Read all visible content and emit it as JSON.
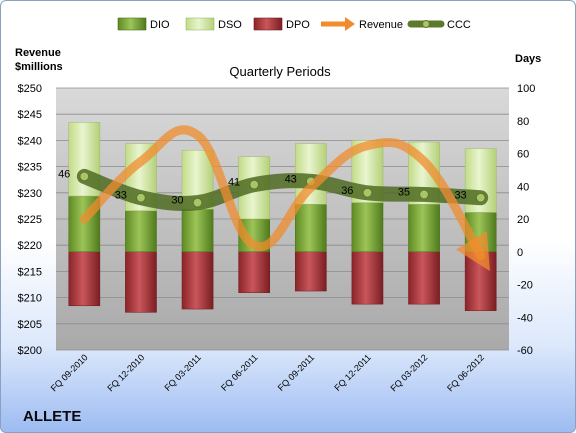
{
  "company": "ALLETE",
  "chart_data": {
    "type": "bar",
    "title": "Quarterly Periods",
    "left_axis_title": [
      "Revenue",
      "$millions"
    ],
    "right_axis_title": "Days",
    "categories": [
      "FQ 09-2010",
      "FQ 12-2010",
      "FQ 03-2011",
      "FQ 06-2011",
      "FQ 09-2011",
      "FQ 12-2011",
      "FQ 03-2012",
      "FQ 06-2012"
    ],
    "left_axis": {
      "min": 200,
      "max": 250,
      "step": 5,
      "tick_labels": [
        "$200",
        "$205",
        "$210",
        "$215",
        "$220",
        "$225",
        "$230",
        "$235",
        "$240",
        "$245",
        "$250"
      ]
    },
    "right_axis": {
      "min": -60,
      "max": 100,
      "step": 20,
      "tick_labels": [
        "-60",
        "-40",
        "-20",
        "0",
        "20",
        "40",
        "60",
        "80",
        "100"
      ]
    },
    "legend": [
      "DIO",
      "DSO",
      "DPO",
      "Revenue",
      "CCC"
    ],
    "legend_position": "top",
    "grid": true,
    "colors": {
      "DIO": "#7fa83a",
      "DSO": "#d2e6a4",
      "DPO": "#a8353b",
      "Revenue": "#f39237",
      "CCC": "#5c7a2a"
    },
    "series": [
      {
        "name": "DIO",
        "axis": "right",
        "values": [
          34,
          25,
          26,
          20,
          29,
          30,
          29,
          24
        ]
      },
      {
        "name": "DSO",
        "axis": "right",
        "values": [
          45,
          41,
          36,
          38,
          37,
          38,
          38,
          39
        ]
      },
      {
        "name": "DPO",
        "axis": "right",
        "values": [
          -33,
          -37,
          -35,
          -25,
          -24,
          -32,
          -32,
          -36
        ]
      },
      {
        "name": "CCC",
        "axis": "right",
        "values": [
          46,
          33,
          30,
          41,
          43,
          36,
          35,
          33
        ],
        "labels": [
          "46",
          "33",
          "30",
          "41",
          "43",
          "36",
          "35",
          "33"
        ]
      },
      {
        "name": "Revenue",
        "axis": "left",
        "values": [
          225,
          236,
          241,
          220,
          231,
          239,
          236,
          218
        ]
      }
    ]
  }
}
